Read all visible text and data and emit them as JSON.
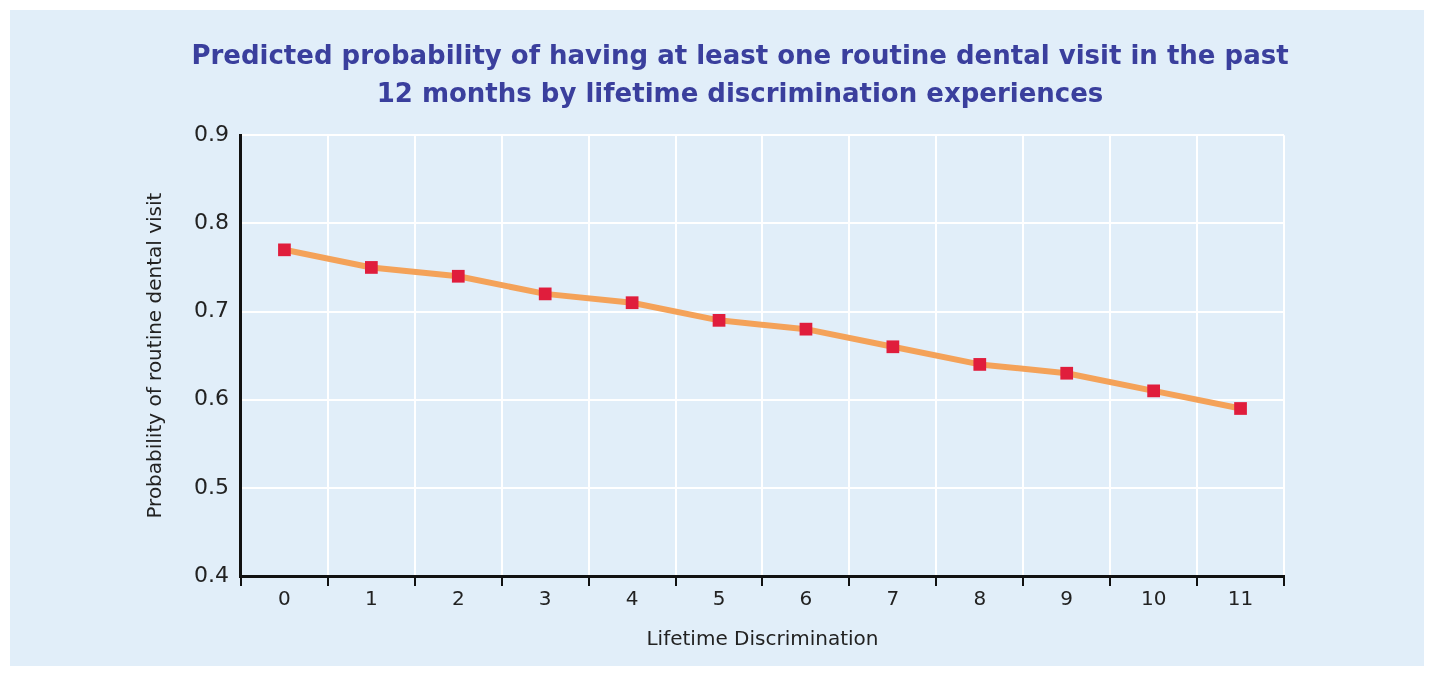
{
  "chart_data": {
    "type": "line",
    "title": "Predicted probability of having at least one routine dental visit in the past 12 months by lifetime discrimination experiences",
    "xlabel": "Lifetime Discrimination",
    "ylabel": "Probability of routine dental visit",
    "categories": [
      "0",
      "1",
      "2",
      "3",
      "4",
      "5",
      "6",
      "7",
      "8",
      "9",
      "10",
      "11"
    ],
    "series": [
      {
        "color": "#f4a259",
        "colors": [
          "#e01d3c",
          "#e01d3c",
          "#e01d3c",
          "#e01d3c",
          "#e01d3c",
          "#e01d3c",
          "#e01d3c",
          "#e01d3c",
          "#e01d3c",
          "#e01d3c",
          "#e01d3c",
          "#e01d3c"
        ],
        "values": [
          0.77,
          0.75,
          0.74,
          0.72,
          0.71,
          0.69,
          0.68,
          0.66,
          0.64,
          0.63,
          0.61,
          0.59
        ]
      }
    ],
    "ylim": [
      0.4,
      0.9
    ],
    "yticks": [
      0.4,
      0.5,
      0.6,
      0.7,
      0.8,
      0.9
    ],
    "grid": true,
    "marker": "square",
    "line_style": "solid"
  }
}
